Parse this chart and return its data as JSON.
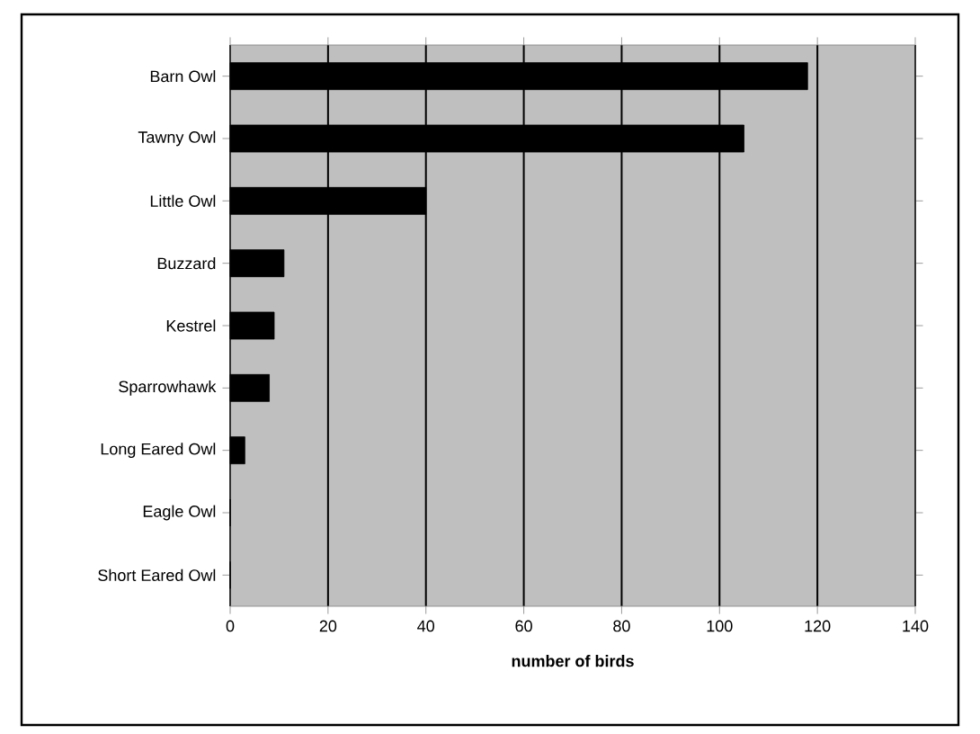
{
  "chart_data": {
    "type": "bar",
    "orientation": "horizontal",
    "xlabel": "number of birds",
    "categories": [
      "Barn Owl",
      "Tawny Owl",
      "Little Owl",
      "Buzzard",
      "Kestrel",
      "Sparrowhawk",
      "Long Eared Owl",
      "Eagle Owl",
      "Short Eared Owl"
    ],
    "values": [
      118,
      105,
      40,
      11,
      9,
      8,
      3,
      0,
      0
    ],
    "color": "#000000",
    "xlim": [
      0,
      140
    ],
    "xticks": [
      0,
      20,
      40,
      60,
      80,
      100,
      120,
      140
    ],
    "grid": "x"
  }
}
